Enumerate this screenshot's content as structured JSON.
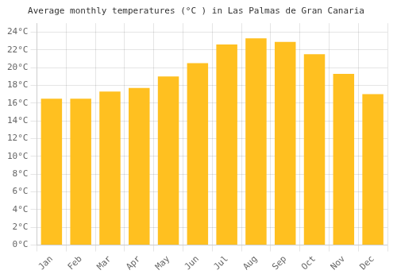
{
  "chart_data": {
    "type": "bar",
    "title": "Average monthly temperatures (°C ) in Las Palmas de Gran Canaria",
    "categories": [
      "Jan",
      "Feb",
      "Mar",
      "Apr",
      "May",
      "Jun",
      "Jul",
      "Aug",
      "Sep",
      "Oct",
      "Nov",
      "Dec"
    ],
    "values": [
      16.5,
      16.5,
      17.3,
      17.7,
      19.0,
      20.5,
      22.6,
      23.3,
      22.9,
      21.5,
      19.3,
      17.0
    ],
    "color": "#FFC020",
    "ylim": [
      0,
      25
    ],
    "yticks": [
      {
        "value": 0,
        "label": "0°C"
      },
      {
        "value": 2,
        "label": "2°C"
      },
      {
        "value": 4,
        "label": "4°C"
      },
      {
        "value": 6,
        "label": "6°C"
      },
      {
        "value": 8,
        "label": "8°C"
      },
      {
        "value": 10,
        "label": "10°C"
      },
      {
        "value": 12,
        "label": "12°C"
      },
      {
        "value": 14,
        "label": "14°C"
      },
      {
        "value": 16,
        "label": "16°C"
      },
      {
        "value": 18,
        "label": "18°C"
      },
      {
        "value": 20,
        "label": "20°C"
      },
      {
        "value": 22,
        "label": "22°C"
      },
      {
        "value": 24,
        "label": "24°C"
      }
    ],
    "grid": true
  }
}
